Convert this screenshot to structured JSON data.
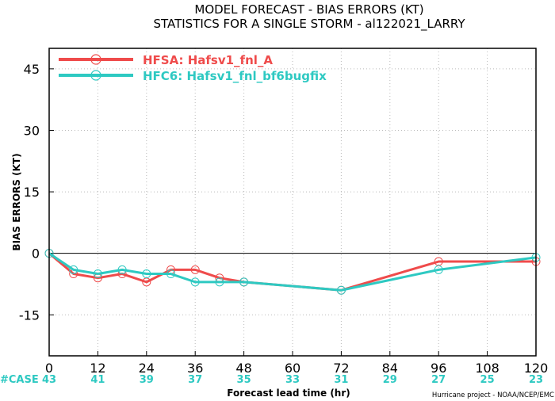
{
  "chart_data": {
    "type": "line",
    "title": "MODEL FORECAST - BIAS ERRORS (KT)",
    "subtitle": "STATISTICS FOR A SINGLE STORM - al122021_LARRY",
    "xlabel": "Forecast lead time (hr)",
    "ylabel": "BIAS ERRORS (KT)",
    "xlim": [
      0,
      120
    ],
    "ylim": [
      -25,
      50
    ],
    "xticks": [
      0,
      12,
      24,
      36,
      48,
      60,
      72,
      84,
      96,
      108,
      120
    ],
    "yticks": [
      -15,
      0,
      15,
      30,
      45
    ],
    "grid": true,
    "legend_position": "top-left",
    "series": [
      {
        "name": "HFSA: Hafsv1_fnl_A",
        "color": "#ef4b4b",
        "x": [
          0,
          6,
          12,
          18,
          24,
          30,
          36,
          42,
          48,
          72,
          96,
          120
        ],
        "y": [
          0,
          -5,
          -6,
          -5,
          -7,
          -4,
          -4,
          -6,
          -7,
          -9,
          -2,
          -2
        ]
      },
      {
        "name": "HFC6: Hafsv1_fnl_bf6bugfix",
        "color": "#2ec9c2",
        "x": [
          0,
          6,
          12,
          18,
          24,
          30,
          36,
          42,
          48,
          72,
          96,
          120
        ],
        "y": [
          0,
          -4,
          -5,
          -4,
          -5,
          -5,
          -7,
          -7,
          -7,
          -9,
          -4,
          -1
        ]
      }
    ],
    "case_label": "#CASE",
    "case_counts": [
      {
        "x": 0,
        "n": "43"
      },
      {
        "x": 12,
        "n": "41"
      },
      {
        "x": 24,
        "n": "39"
      },
      {
        "x": 36,
        "n": "37"
      },
      {
        "x": 48,
        "n": "35"
      },
      {
        "x": 60,
        "n": "33"
      },
      {
        "x": 72,
        "n": "31"
      },
      {
        "x": 84,
        "n": "29"
      },
      {
        "x": 96,
        "n": "27"
      },
      {
        "x": 108,
        "n": "25"
      },
      {
        "x": 120,
        "n": "23"
      }
    ],
    "credit": "Hurricane project - NOAA/NCEP/EMC"
  }
}
